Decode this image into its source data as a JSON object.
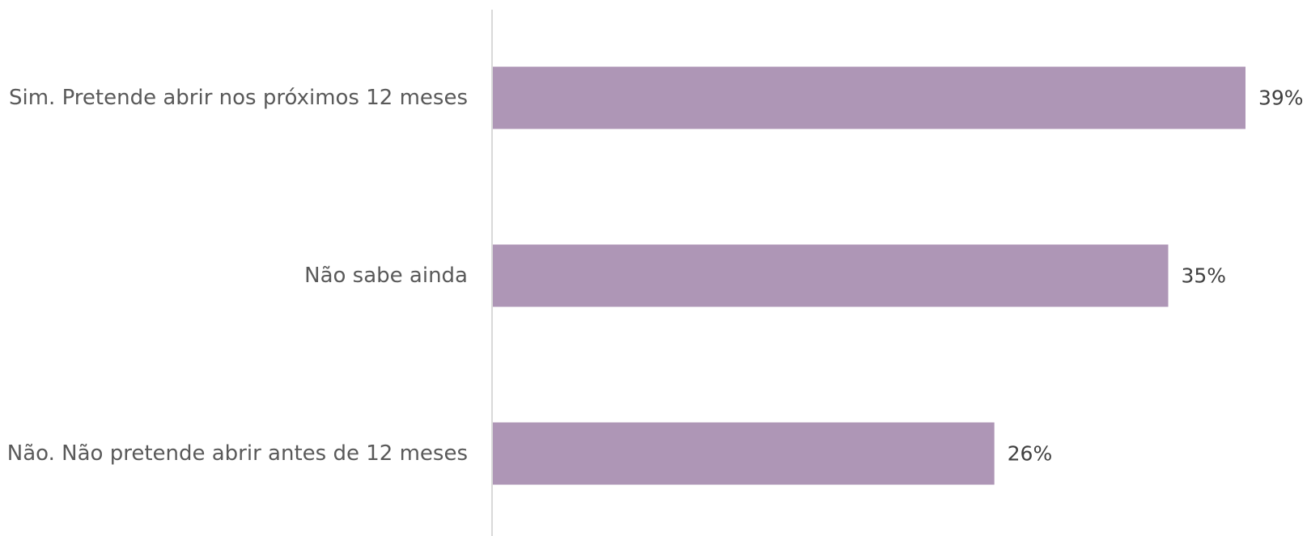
{
  "chart_data": {
    "type": "bar",
    "orientation": "horizontal",
    "title": "",
    "xlabel": "",
    "ylabel": "",
    "categories": [
      "Sim. Pretende abrir nos próximos 12 meses",
      "Não sabe ainda",
      "Não. Não pretende abrir antes de 12 meses"
    ],
    "values": [
      39,
      35,
      26
    ],
    "data_labels": [
      "39%",
      "35%",
      "26%"
    ],
    "unit": "%",
    "xlim": [
      0,
      39
    ],
    "grid": false,
    "legend": "none",
    "bar_color": "#AE96B6",
    "axis_color": "#D9D9D9"
  }
}
